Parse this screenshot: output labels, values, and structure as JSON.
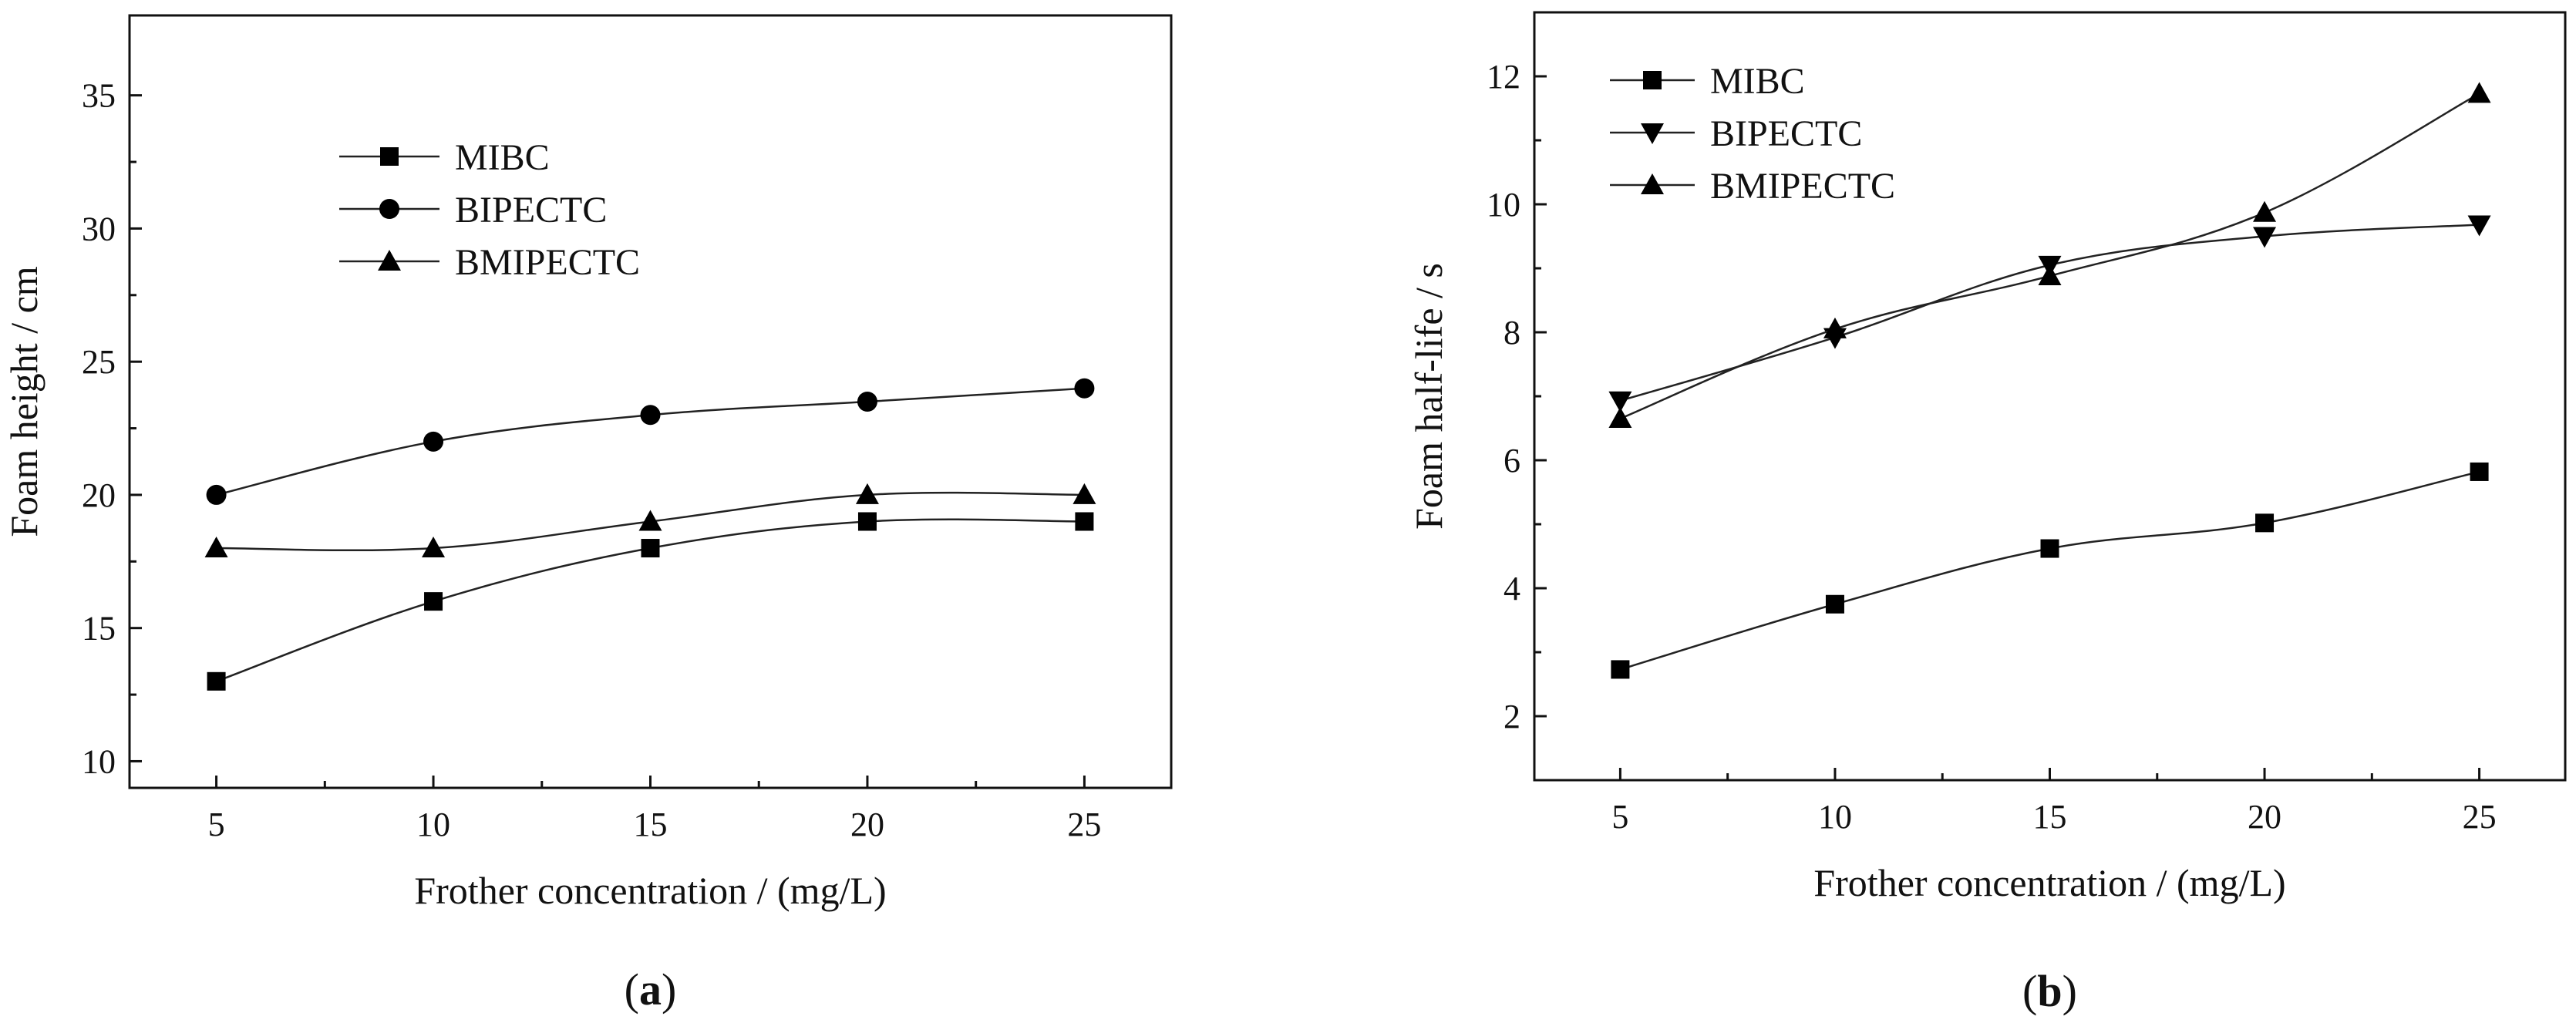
{
  "chart_data": [
    {
      "panel": "(a)",
      "panel_open": "(",
      "panel_letter": "a",
      "panel_close": ")",
      "type": "line",
      "xlabel": "Frother concentration / (mg/L)",
      "ylabel": "Foam height / cm",
      "x": [
        5,
        10,
        15,
        20,
        25
      ],
      "xlim": [
        3,
        27
      ],
      "ylim": [
        9,
        38
      ],
      "xticks": [
        5,
        10,
        15,
        20,
        25
      ],
      "yticks": [
        10,
        15,
        20,
        25,
        30,
        35
      ],
      "legend_position": "upper-middle",
      "series": [
        {
          "name": "MIBC",
          "marker": "square",
          "values": [
            13,
            16,
            18,
            19,
            19
          ]
        },
        {
          "name": "BIPECTC",
          "marker": "circle",
          "values": [
            20,
            22,
            23,
            23.5,
            24
          ]
        },
        {
          "name": "BMIPECTC",
          "marker": "triangle-up",
          "values": [
            18,
            18,
            19,
            20,
            20
          ]
        }
      ]
    },
    {
      "panel": "(b)",
      "panel_open": "(",
      "panel_letter": "b",
      "panel_close": ")",
      "type": "line",
      "xlabel": "Frother concentration / (mg/L)",
      "ylabel": "Foam half-life / s",
      "x": [
        5,
        10,
        15,
        20,
        25
      ],
      "xlim": [
        3,
        27
      ],
      "ylim": [
        1,
        13
      ],
      "xticks": [
        5,
        10,
        15,
        20,
        25
      ],
      "yticks": [
        2,
        4,
        6,
        8,
        10,
        12
      ],
      "legend_position": "top-left",
      "series": [
        {
          "name": "MIBC",
          "marker": "square",
          "values": [
            2.73,
            3.75,
            4.62,
            5.02,
            5.82
          ]
        },
        {
          "name": "BIPECTC",
          "marker": "triangle-down",
          "values": [
            6.93,
            7.92,
            9.05,
            9.5,
            9.68
          ]
        },
        {
          "name": "BMIPECTC",
          "marker": "triangle-up",
          "values": [
            6.65,
            8.05,
            8.88,
            9.87,
            11.73
          ]
        }
      ]
    }
  ]
}
